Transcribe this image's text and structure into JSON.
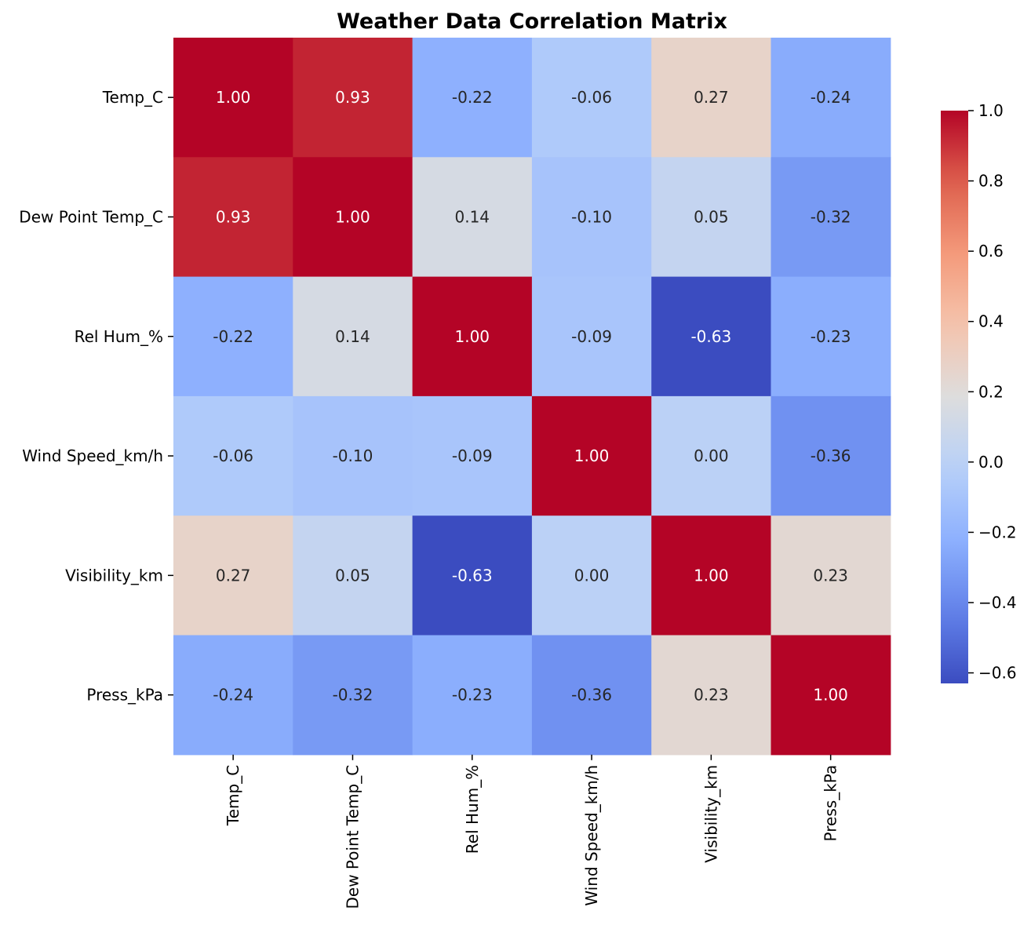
{
  "chart_data": {
    "type": "heatmap",
    "title": "Weather Data Correlation Matrix",
    "xlabel": "",
    "ylabel": "",
    "row_labels": [
      "Temp_C",
      "Dew Point Temp_C",
      "Rel Hum_%",
      "Wind Speed_km/h",
      "Visibility_km",
      "Press_kPa"
    ],
    "col_labels": [
      "Temp_C",
      "Dew Point Temp_C",
      "Rel Hum_%",
      "Wind Speed_km/h",
      "Visibility_km",
      "Press_kPa"
    ],
    "values": [
      [
        1.0,
        0.93,
        -0.22,
        -0.06,
        0.27,
        -0.24
      ],
      [
        0.93,
        1.0,
        0.14,
        -0.1,
        0.05,
        -0.32
      ],
      [
        -0.22,
        0.14,
        1.0,
        -0.09,
        -0.63,
        -0.23
      ],
      [
        -0.06,
        -0.1,
        -0.09,
        1.0,
        0.0,
        -0.36
      ],
      [
        0.27,
        0.05,
        -0.63,
        0.0,
        1.0,
        0.23
      ],
      [
        -0.24,
        -0.32,
        -0.23,
        -0.36,
        0.23,
        1.0
      ]
    ],
    "cell_labels": [
      [
        "1.00",
        "0.93",
        "-0.22",
        "-0.06",
        "0.27",
        "-0.24"
      ],
      [
        "0.93",
        "1.00",
        "0.14",
        "-0.10",
        "0.05",
        "-0.32"
      ],
      [
        "-0.22",
        "0.14",
        "1.00",
        "-0.09",
        "-0.63",
        "-0.23"
      ],
      [
        "-0.06",
        "-0.10",
        "-0.09",
        "1.00",
        "0.00",
        "-0.36"
      ],
      [
        "0.27",
        "0.05",
        "-0.63",
        "0.00",
        "1.00",
        "0.23"
      ],
      [
        "-0.24",
        "-0.32",
        "-0.23",
        "-0.36",
        "0.23",
        "1.00"
      ]
    ],
    "colormap": "coolwarm",
    "colorbar": {
      "range": [
        -0.63,
        1.0
      ],
      "ticks": [
        1.0,
        0.8,
        0.6,
        0.4,
        0.2,
        0.0,
        -0.2,
        -0.4,
        -0.6
      ],
      "tick_labels": [
        "1.0",
        "0.8",
        "0.6",
        "0.4",
        "0.2",
        "0.0",
        "−0.2",
        "−0.4",
        "−0.6"
      ],
      "placement": "right"
    },
    "grid": false,
    "legend": "none"
  }
}
